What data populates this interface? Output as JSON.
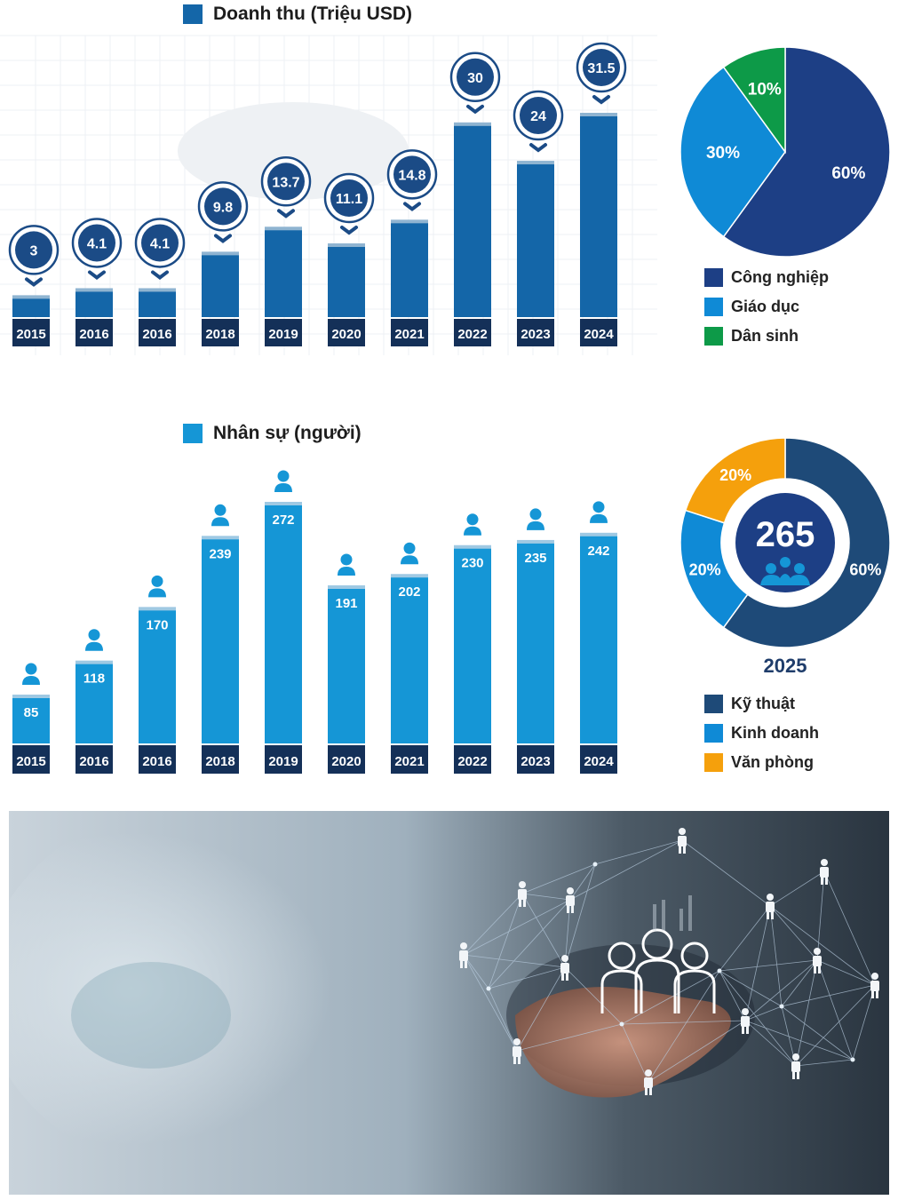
{
  "revenue": {
    "legend_label": "Doanh thu (Triệu USD)",
    "legend_color": "#1466a8",
    "chart_data": {
      "type": "bar",
      "title": "Doanh thu (Triệu USD)",
      "categories": [
        "2015",
        "2016",
        "2016",
        "2018",
        "2019",
        "2020",
        "2021",
        "2022",
        "2023",
        "2024"
      ],
      "values": [
        3,
        4.1,
        4.1,
        9.8,
        13.7,
        11.1,
        14.8,
        30,
        24,
        31.5
      ],
      "ylim": [
        0,
        32
      ]
    },
    "bar_color": "#1466a8",
    "bubble_color": "#1b4b86",
    "pie": {
      "type": "pie",
      "labels": [
        "Công nghiệp",
        "Giáo dục",
        "Dân sinh"
      ],
      "values": [
        60,
        30,
        10
      ],
      "display": [
        "60%",
        "30%",
        "10%"
      ],
      "colors": [
        "#1d3f85",
        "#0f8ad6",
        "#0d9a48"
      ]
    }
  },
  "staff": {
    "legend_label": "Nhân sự (người)",
    "legend_color": "#1596d6",
    "chart_data": {
      "type": "bar",
      "title": "Nhân sự (người)",
      "categories": [
        "2015",
        "2016",
        "2016",
        "2018",
        "2019",
        "2020",
        "2021",
        "2022",
        "2023",
        "2024"
      ],
      "values": [
        85,
        118,
        170,
        239,
        272,
        191,
        202,
        230,
        235,
        242
      ],
      "ylim": [
        0,
        275
      ]
    },
    "bar_color": "#1596d6",
    "icon_color": "#1596d6",
    "donut": {
      "type": "pie",
      "labels": [
        "Kỹ thuật",
        "Kinh doanh",
        "Văn phòng"
      ],
      "values": [
        60,
        20,
        20
      ],
      "display": [
        "60%",
        "20%",
        "20%"
      ],
      "colors": [
        "#1e4a78",
        "#0f8ad6",
        "#f5a00c"
      ],
      "center_value": "265",
      "year": "2025"
    }
  },
  "year_box_color": "#143058"
}
